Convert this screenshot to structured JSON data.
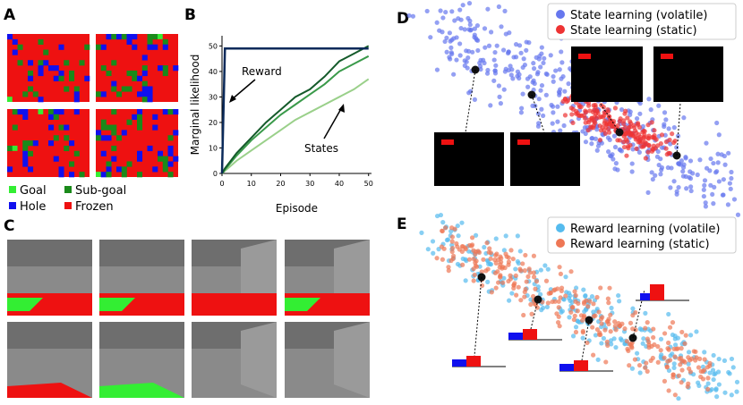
{
  "panel_labels": [
    "A",
    "B",
    "C",
    "D",
    "E"
  ],
  "legend_a": [
    {
      "name": "Goal",
      "color": "#33ee33"
    },
    {
      "name": "Sub-goal",
      "color": "#1a8a1a"
    },
    {
      "name": "Hole",
      "color": "#1010ee"
    },
    {
      "name": "Frozen",
      "color": "#ee1111"
    }
  ],
  "chart_data": {
    "type": "line",
    "x_label": "Episode",
    "y_label": "Marginal likelihood",
    "x": [
      0,
      1,
      5,
      10,
      15,
      20,
      25,
      30,
      35,
      40,
      45,
      50
    ],
    "xlim": [
      0,
      51
    ],
    "ylim": [
      0,
      54
    ],
    "xticks": [
      0,
      10,
      20,
      30,
      40,
      50
    ],
    "yticks": [
      0,
      10,
      20,
      30,
      40,
      50
    ],
    "series": [
      {
        "name": "Reward",
        "color": "#0b2a5a",
        "values": [
          0,
          49,
          49,
          49,
          49,
          49,
          49,
          49,
          49,
          49,
          49,
          49
        ]
      },
      {
        "name": "States",
        "color": "#145a2a",
        "values": [
          0,
          2,
          8,
          14,
          20,
          25,
          30,
          33,
          38,
          44,
          47,
          50
        ]
      },
      {
        "color": "#3a9a4a",
        "values": [
          0,
          1.5,
          7,
          13,
          18,
          23,
          27,
          31,
          35,
          40,
          43,
          46
        ]
      },
      {
        "color": "#9ad08a",
        "values": [
          0,
          1,
          5,
          9,
          13,
          17,
          21,
          24,
          27,
          30,
          33,
          37
        ]
      }
    ],
    "annotations": [
      "Reward",
      "States"
    ]
  },
  "legend_d": [
    {
      "name": "State learning (volatile)",
      "color": "#6677ee"
    },
    {
      "name": "State learning (static)",
      "color": "#ee3333"
    }
  ],
  "legend_e": [
    {
      "name": "Reward learning (volatile)",
      "color": "#55bbee"
    },
    {
      "name": "Reward learning (static)",
      "color": "#ee7755"
    }
  ]
}
